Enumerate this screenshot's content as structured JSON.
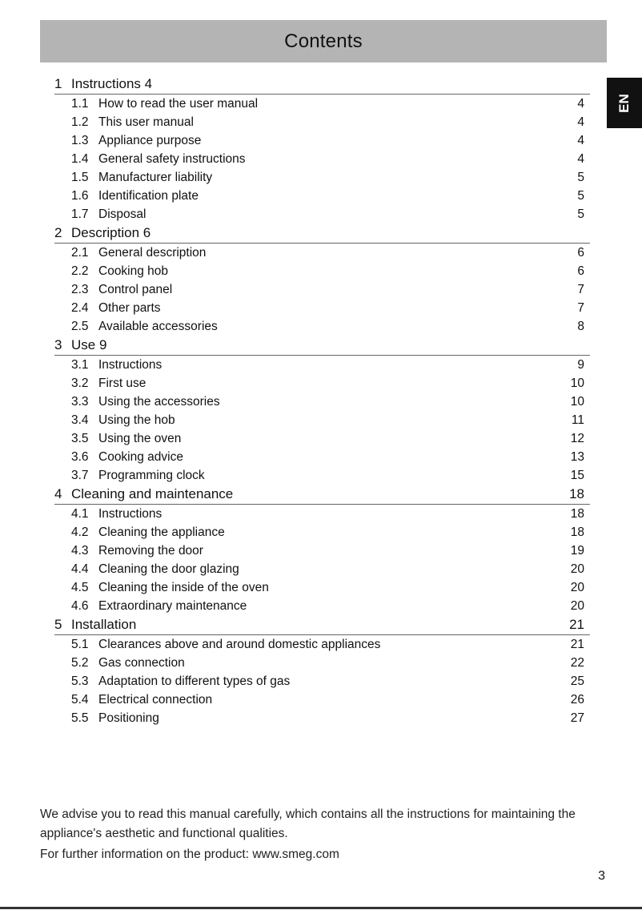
{
  "header": {
    "title": "Contents"
  },
  "language_tab": "EN",
  "sections": [
    {
      "num": "1",
      "title": "Instructions 4",
      "page": "",
      "items": [
        {
          "num": "1.1",
          "title": "How to read the user manual",
          "page": "4"
        },
        {
          "num": "1.2",
          "title": "This user manual",
          "page": "4"
        },
        {
          "num": "1.3",
          "title": "Appliance purpose",
          "page": "4"
        },
        {
          "num": "1.4",
          "title": "General safety instructions",
          "page": "4"
        },
        {
          "num": "1.5",
          "title": "Manufacturer liability",
          "page": "5"
        },
        {
          "num": "1.6",
          "title": "Identification plate",
          "page": "5"
        },
        {
          "num": "1.7",
          "title": "Disposal",
          "page": "5"
        }
      ]
    },
    {
      "num": "2",
      "title": "Description 6",
      "page": "",
      "items": [
        {
          "num": "2.1",
          "title": "General description",
          "page": "6"
        },
        {
          "num": "2.2",
          "title": "Cooking hob",
          "page": "6"
        },
        {
          "num": "2.3",
          "title": "Control panel",
          "page": "7"
        },
        {
          "num": "2.4",
          "title": "Other parts",
          "page": "7"
        },
        {
          "num": "2.5",
          "title": "Available accessories",
          "page": "8"
        }
      ]
    },
    {
      "num": "3",
      "title": "Use 9",
      "page": "",
      "items": [
        {
          "num": "3.1",
          "title": "Instructions",
          "page": "9"
        },
        {
          "num": "3.2",
          "title": "First use",
          "page": "10"
        },
        {
          "num": "3.3",
          "title": "Using the accessories",
          "page": "10"
        },
        {
          "num": "3.4",
          "title": "Using the hob",
          "page": "11"
        },
        {
          "num": "3.5",
          "title": "Using the oven",
          "page": "12"
        },
        {
          "num": "3.6",
          "title": "Cooking advice",
          "page": "13"
        },
        {
          "num": "3.7",
          "title": "Programming clock",
          "page": "15"
        }
      ]
    },
    {
      "num": "4",
      "title": "Cleaning and maintenance",
      "page": "18",
      "items": [
        {
          "num": "4.1",
          "title": "Instructions",
          "page": "18"
        },
        {
          "num": "4.2",
          "title": "Cleaning the appliance",
          "page": "18"
        },
        {
          "num": "4.3",
          "title": "Removing the door",
          "page": "19"
        },
        {
          "num": "4.4",
          "title": "Cleaning the door glazing",
          "page": "20"
        },
        {
          "num": "4.5",
          "title": "Cleaning the inside of the oven",
          "page": "20"
        },
        {
          "num": "4.6",
          "title": "Extraordinary maintenance",
          "page": "20"
        }
      ]
    },
    {
      "num": "5",
      "title": "Installation",
      "page": "21",
      "items": [
        {
          "num": "5.1",
          "title": "Clearances above and around domestic appliances",
          "page": "21"
        },
        {
          "num": "5.2",
          "title": "Gas connection",
          "page": "22"
        },
        {
          "num": "5.3",
          "title": "Adaptation to different types of gas",
          "page": "25"
        },
        {
          "num": "5.4",
          "title": "Electrical connection",
          "page": "26"
        },
        {
          "num": "5.5",
          "title": "Positioning",
          "page": "27"
        }
      ]
    }
  ],
  "intro": {
    "advice": "We advise you to read this manual carefully, which contains all the instructions for maintaining the appliance's aesthetic and functional qualities.",
    "more_info": "For further information on the product: www.smeg.com"
  },
  "page_number": "3"
}
